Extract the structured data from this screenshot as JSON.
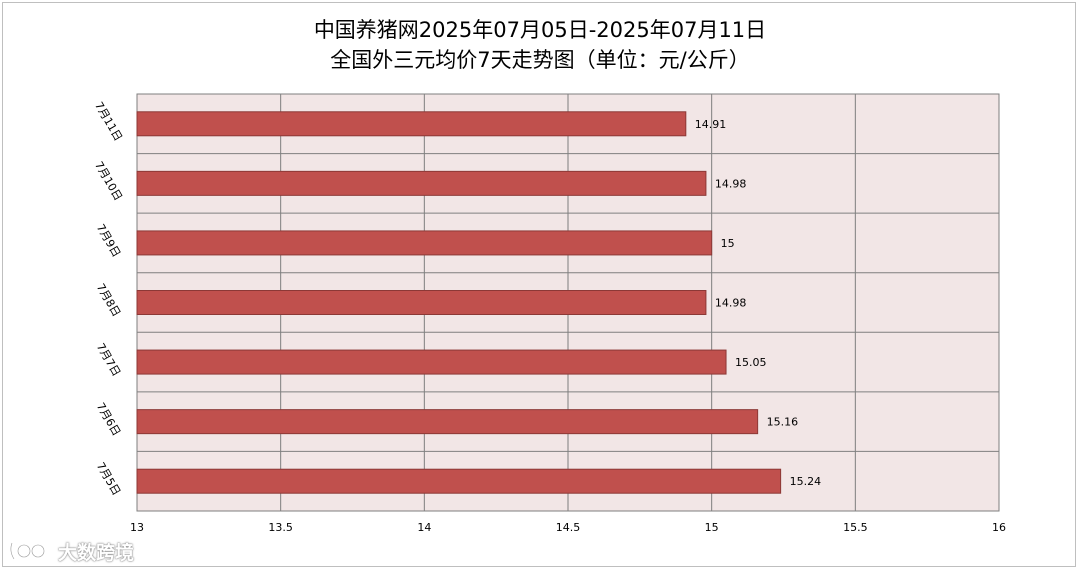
{
  "chart_data": {
    "type": "bar",
    "orientation": "horizontal",
    "title": "中国养猪网2025年07月05日-2025年07月11日",
    "subtitle": "全国外三元均价7天走势图（单位：元/公斤）",
    "categories": [
      "7月11日",
      "7月10日",
      "7月9日",
      "7月8日",
      "7月7日",
      "7月6日",
      "7月5日"
    ],
    "values": [
      14.91,
      14.98,
      15,
      14.98,
      15.05,
      15.16,
      15.24
    ],
    "value_labels": [
      "14.91",
      "14.98",
      "15",
      "14.98",
      "15.05",
      "15.16",
      "15.24"
    ],
    "xlim": [
      13,
      16
    ],
    "xticks": [
      "13",
      "13.5",
      "14",
      "14.5",
      "15",
      "15.5",
      "16"
    ],
    "xtick_values": [
      13,
      13.5,
      14,
      14.5,
      15,
      15.5,
      16
    ],
    "grid": true,
    "colors": {
      "bar_fill": "#c0504d",
      "bar_stroke": "#8c3836",
      "plot_background": "#f2e6e6",
      "grid": "#7f7f7f"
    }
  },
  "watermark": {
    "text": "大数跨境",
    "icon": "brand-logo-icon"
  }
}
